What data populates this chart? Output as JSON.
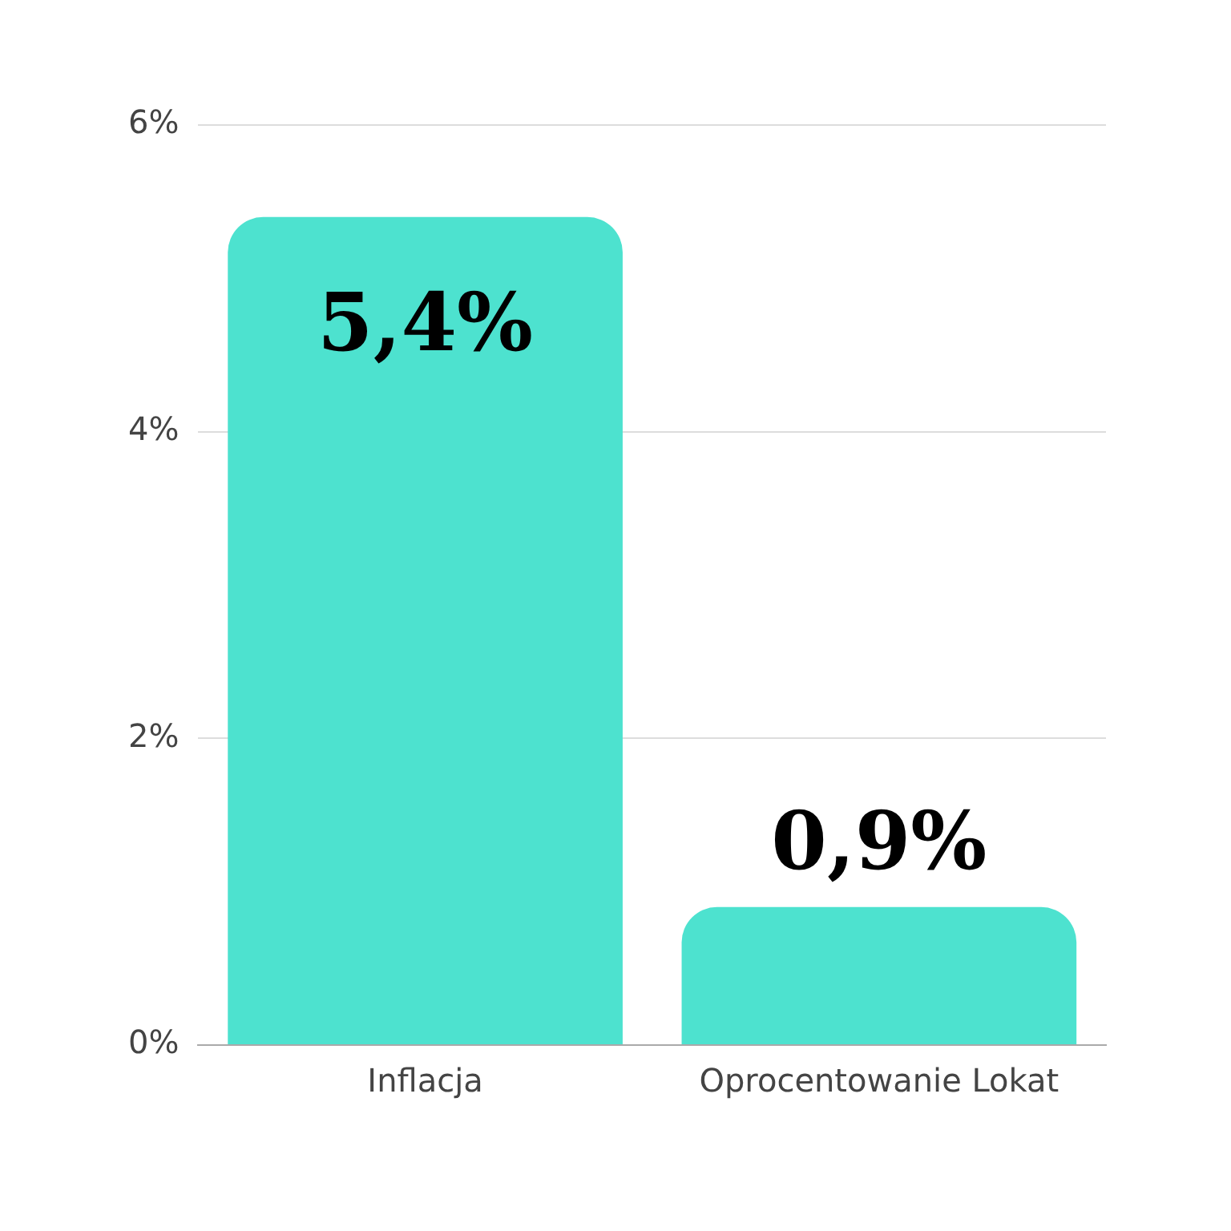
{
  "chart_data": {
    "type": "bar",
    "categories": [
      "Inflacja",
      "Oprocentowanie Lokat"
    ],
    "values": [
      5.4,
      0.9
    ],
    "color": "#4de2cf",
    "value_labels": [
      "5,4%",
      "0,9%"
    ],
    "ylim": [
      0,
      6
    ],
    "yticks": [
      {
        "value": 0,
        "label": "0%"
      },
      {
        "value": 2,
        "label": "2%"
      },
      {
        "value": 4,
        "label": "4%"
      },
      {
        "value": 6,
        "label": "6%"
      }
    ],
    "grid": "y"
  }
}
